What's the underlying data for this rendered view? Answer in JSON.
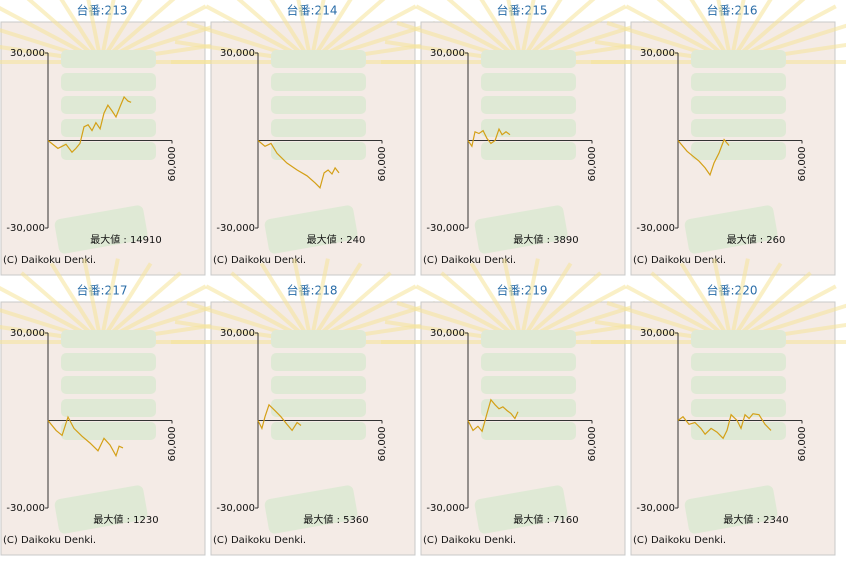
{
  "chart_data": [
    {
      "type": "line",
      "title": "台番:213",
      "color": "#d4a017",
      "xlim": [
        0,
        60000
      ],
      "ylim": [
        -30000,
        30000
      ],
      "xticks": [
        {
          "value": 60000,
          "label": "60,000"
        }
      ],
      "yticks": [
        {
          "value": 30000,
          "label": "30,000"
        },
        {
          "value": -30000,
          "label": "-30,000"
        }
      ],
      "x": [
        0,
        4800,
        8700,
        11600,
        13500,
        15500,
        17400,
        19400,
        21300,
        23200,
        25200,
        27100,
        29000,
        31000,
        32900,
        34800,
        36800,
        38700,
        40200
      ],
      "values": [
        0,
        -2700,
        -1300,
        -4000,
        -2700,
        -1000,
        4700,
        5400,
        3400,
        6100,
        4000,
        9400,
        12100,
        10100,
        8100,
        11500,
        14900,
        13500,
        13100
      ],
      "annotation": "最大値 : 14910",
      "footer": "(C) Daikoku Denki."
    },
    {
      "type": "line",
      "title": "台番:214",
      "color": "#d4a017",
      "xlim": [
        0,
        60000
      ],
      "ylim": [
        -30000,
        30000
      ],
      "xticks": [
        {
          "value": 60000,
          "label": "60,000"
        }
      ],
      "yticks": [
        {
          "value": 30000,
          "label": "30,000"
        },
        {
          "value": -30000,
          "label": "-30,000"
        }
      ],
      "x": [
        0,
        3400,
        6300,
        9200,
        14000,
        18900,
        23700,
        27600,
        30000,
        32000,
        33900,
        35800,
        37300,
        39200
      ],
      "values": [
        0,
        -2000,
        -1000,
        -4400,
        -7700,
        -10100,
        -12100,
        -14500,
        -16200,
        -11100,
        -10100,
        -11500,
        -9400,
        -11100
      ],
      "annotation": "最大値 : 240",
      "footer": "(C) Daikoku Denki."
    },
    {
      "type": "line",
      "title": "台番:215",
      "color": "#d4a017",
      "xlim": [
        0,
        60000
      ],
      "ylim": [
        -30000,
        30000
      ],
      "xticks": [
        {
          "value": 60000,
          "label": "60,000"
        }
      ],
      "yticks": [
        {
          "value": 30000,
          "label": "30,000"
        },
        {
          "value": -30000,
          "label": "-30,000"
        }
      ],
      "x": [
        0,
        1900,
        3400,
        5300,
        7300,
        9200,
        11100,
        13100,
        15000,
        16500,
        18400,
        20300
      ],
      "values": [
        0,
        -2000,
        3000,
        2400,
        3400,
        700,
        -1000,
        0,
        3900,
        2000,
        3000,
        2000
      ],
      "annotation": "最大値 : 3890",
      "footer": "(C) Daikoku Denki."
    },
    {
      "type": "line",
      "title": "台番:216",
      "color": "#d4a017",
      "xlim": [
        0,
        60000
      ],
      "ylim": [
        -30000,
        30000
      ],
      "xticks": [
        {
          "value": 60000,
          "label": "60,000"
        }
      ],
      "yticks": [
        {
          "value": 30000,
          "label": "30,000"
        },
        {
          "value": -30000,
          "label": "-30,000"
        }
      ],
      "x": [
        0,
        4400,
        7300,
        10200,
        13100,
        15500,
        17400,
        19800,
        22300,
        24700
      ],
      "values": [
        0,
        -3700,
        -5400,
        -7100,
        -9400,
        -11800,
        -7700,
        -4400,
        300,
        -1700
      ],
      "annotation": "最大値 : 260",
      "footer": "(C) Daikoku Denki."
    },
    {
      "type": "line",
      "title": "台番:217",
      "color": "#d4a017",
      "xlim": [
        0,
        60000
      ],
      "ylim": [
        -30000,
        30000
      ],
      "xticks": [
        {
          "value": 60000,
          "label": "60,000"
        }
      ],
      "yticks": [
        {
          "value": 30000,
          "label": "30,000"
        },
        {
          "value": -30000,
          "label": "-30,000"
        }
      ],
      "x": [
        0,
        3900,
        6800,
        9700,
        12600,
        16500,
        20300,
        24200,
        27100,
        30000,
        32900,
        34400,
        36300
      ],
      "values": [
        0,
        -3400,
        -5100,
        1200,
        -2700,
        -5400,
        -7700,
        -10400,
        -6100,
        -8400,
        -12100,
        -8800,
        -9400
      ],
      "annotation": "最大値 : 1230",
      "footer": "(C) Daikoku Denki."
    },
    {
      "type": "line",
      "title": "台番:218",
      "color": "#d4a017",
      "xlim": [
        0,
        60000
      ],
      "ylim": [
        -30000,
        30000
      ],
      "xticks": [
        {
          "value": 60000,
          "label": "60,000"
        }
      ],
      "yticks": [
        {
          "value": 30000,
          "label": "30,000"
        },
        {
          "value": -30000,
          "label": "-30,000"
        }
      ],
      "x": [
        0,
        1900,
        3400,
        5300,
        8200,
        11100,
        14000,
        16500,
        18900,
        20800
      ],
      "values": [
        0,
        -2700,
        1300,
        5400,
        3400,
        1300,
        -1300,
        -3400,
        -700,
        -1700
      ],
      "annotation": "最大値 : 5360",
      "footer": "(C) Daikoku Denki."
    },
    {
      "type": "line",
      "title": "台番:219",
      "color": "#d4a017",
      "xlim": [
        0,
        60000
      ],
      "ylim": [
        -30000,
        30000
      ],
      "xticks": [
        {
          "value": 60000,
          "label": "60,000"
        }
      ],
      "yticks": [
        {
          "value": 30000,
          "label": "30,000"
        },
        {
          "value": -30000,
          "label": "-30,000"
        }
      ],
      "x": [
        0,
        2400,
        4800,
        6800,
        9200,
        11100,
        13100,
        15000,
        16900,
        18900,
        20800,
        22700,
        24200
      ],
      "values": [
        0,
        -3400,
        -2000,
        -3700,
        2400,
        7100,
        5400,
        4000,
        4700,
        3400,
        2400,
        700,
        3000
      ],
      "annotation": "最大値 : 7160",
      "footer": "(C) Daikoku Denki."
    },
    {
      "type": "line",
      "title": "台番:220",
      "color": "#d4a017",
      "xlim": [
        0,
        60000
      ],
      "ylim": [
        -30000,
        30000
      ],
      "xticks": [
        {
          "value": 60000,
          "label": "60,000"
        }
      ],
      "yticks": [
        {
          "value": 30000,
          "label": "30,000"
        },
        {
          "value": -30000,
          "label": "-30,000"
        }
      ],
      "x": [
        0,
        2400,
        5300,
        8200,
        11100,
        13100,
        16000,
        18900,
        21800,
        23700,
        25700,
        28600,
        30500,
        32400,
        34400,
        36300,
        39200,
        42100,
        45000
      ],
      "values": [
        0,
        1300,
        -1300,
        -700,
        -2700,
        -4700,
        -2700,
        -4000,
        -6100,
        -3400,
        2000,
        0,
        -2700,
        2000,
        700,
        2300,
        2000,
        -1300,
        -3400
      ],
      "annotation": "最大値 : 2340",
      "footer": "(C) Daikoku Denki."
    }
  ]
}
